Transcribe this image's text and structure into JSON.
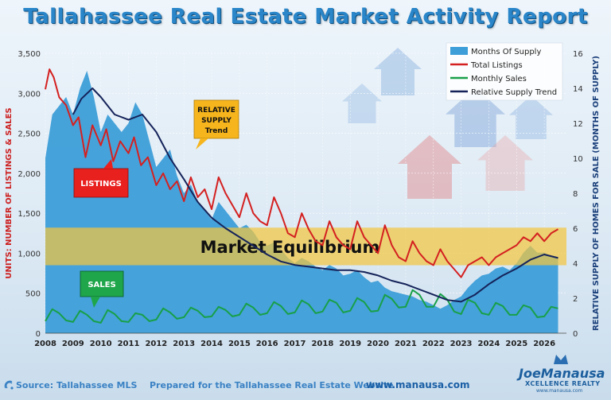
{
  "header": {
    "title": "Tallahassee Real Estate Market Activity Report"
  },
  "chart_data": {
    "type": "area",
    "title": "Tallahassee Real Estate Market Activity Report",
    "left_axis": {
      "label": "UNITS: NUMBER OF LISTINGS & SALES",
      "min": 0,
      "max": 3500,
      "ticks": [
        "0",
        "500",
        "1,000",
        "1,500",
        "2,000",
        "2,500",
        "3,000",
        "3,500"
      ],
      "tick_values": [
        0,
        500,
        1000,
        1500,
        2000,
        2500,
        3000,
        3500
      ]
    },
    "right_axis": {
      "label": "RELATIVE SUPPLY OF HOMES FOR SALE (MONTHS OF SUPPLY)",
      "min": 0,
      "max": 16,
      "ticks": [
        "0",
        "2",
        "4",
        "6",
        "8",
        "10",
        "12",
        "14",
        "16"
      ],
      "tick_values": [
        0,
        2,
        4,
        6,
        8,
        10,
        12,
        14,
        16
      ]
    },
    "x_axis": {
      "min": 2008,
      "max": 2026.8,
      "ticks": [
        "2008",
        "2009",
        "2010",
        "2011",
        "2012",
        "2013",
        "2014",
        "2015",
        "2016",
        "2017",
        "2018",
        "2019",
        "2020",
        "2021",
        "2022",
        "2023",
        "2024",
        "2025",
        "2026"
      ],
      "tick_values": [
        2008,
        2009,
        2010,
        2011,
        2012,
        2013,
        2014,
        2015,
        2016,
        2017,
        2018,
        2019,
        2020,
        2021,
        2022,
        2023,
        2024,
        2025,
        2026
      ]
    },
    "grid": true,
    "legend_position": "top-right",
    "equilibrium_band": {
      "label": "Market Equilibrium",
      "low": 850,
      "high": 1320
    },
    "annotations": {
      "listings": "LISTINGS",
      "sales": "SALES",
      "relative_supply": "RELATIVE SUPPLY Trend"
    },
    "series": [
      {
        "name": "Months Of Supply",
        "type": "area",
        "axis": "right",
        "color": "#3d9ed8",
        "x": [
          2008,
          2008.25,
          2008.5,
          2008.75,
          2009,
          2009.25,
          2009.5,
          2009.75,
          2010,
          2010.25,
          2010.5,
          2010.75,
          2011,
          2011.25,
          2011.5,
          2011.75,
          2012,
          2012.25,
          2012.5,
          2012.75,
          2013,
          2013.25,
          2013.5,
          2013.75,
          2014,
          2014.25,
          2014.5,
          2014.75,
          2015,
          2015.25,
          2015.5,
          2015.75,
          2016,
          2016.25,
          2016.5,
          2016.75,
          2017,
          2017.25,
          2017.5,
          2017.75,
          2018,
          2018.25,
          2018.5,
          2018.75,
          2019,
          2019.25,
          2019.5,
          2019.75,
          2020,
          2020.25,
          2020.5,
          2020.75,
          2021,
          2021.25,
          2021.5,
          2021.75,
          2022,
          2022.25,
          2022.5,
          2022.75,
          2023,
          2023.25,
          2023.5,
          2023.75,
          2024,
          2024.25,
          2024.5,
          2024.75,
          2025,
          2025.25,
          2025.5,
          2025.75,
          2026,
          2026.25,
          2026.5
        ],
        "y": [
          10,
          12.5,
          13,
          13.5,
          12.5,
          14,
          15,
          13.5,
          11.5,
          12.5,
          12,
          11.5,
          12,
          13.2,
          12.5,
          11,
          9.5,
          10,
          10.5,
          9,
          8,
          8.5,
          7.5,
          7,
          6.5,
          7.5,
          7,
          6.5,
          6,
          6.2,
          5.8,
          5.2,
          5,
          5.2,
          4.8,
          4.3,
          4,
          4.3,
          4.1,
          3.8,
          3.6,
          3.9,
          3.7,
          3.3,
          3.4,
          3.6,
          3.2,
          2.9,
          3,
          2.6,
          2.4,
          2.3,
          2.2,
          2.1,
          1.9,
          1.8,
          1.6,
          1.4,
          1.6,
          1.9,
          2.1,
          2.6,
          3,
          3.3,
          3.4,
          3.7,
          3.8,
          3.6,
          4,
          4.6,
          5,
          4.6,
          4.6,
          4.4,
          4.3
        ]
      },
      {
        "name": "Total Listings",
        "type": "line",
        "axis": "left",
        "color": "#d42020",
        "x": [
          2008,
          2008.15,
          2008.3,
          2008.5,
          2008.75,
          2009,
          2009.2,
          2009.45,
          2009.7,
          2010,
          2010.2,
          2010.45,
          2010.7,
          2011,
          2011.2,
          2011.45,
          2011.7,
          2012,
          2012.25,
          2012.5,
          2012.75,
          2013,
          2013.25,
          2013.5,
          2013.75,
          2014,
          2014.25,
          2014.5,
          2014.75,
          2015,
          2015.25,
          2015.5,
          2015.75,
          2016,
          2016.25,
          2016.5,
          2016.75,
          2017,
          2017.25,
          2017.5,
          2017.75,
          2018,
          2018.25,
          2018.5,
          2018.75,
          2019,
          2019.25,
          2019.5,
          2019.75,
          2020,
          2020.25,
          2020.5,
          2020.75,
          2021,
          2021.25,
          2021.5,
          2021.75,
          2022,
          2022.25,
          2022.5,
          2022.75,
          2023,
          2023.25,
          2023.5,
          2023.75,
          2024,
          2024.25,
          2024.5,
          2024.75,
          2025,
          2025.25,
          2025.5,
          2025.75,
          2026,
          2026.25,
          2026.5
        ],
        "y": [
          3050,
          3300,
          3200,
          2950,
          2850,
          2600,
          2700,
          2200,
          2600,
          2350,
          2550,
          2150,
          2400,
          2250,
          2450,
          2100,
          2200,
          1850,
          2000,
          1800,
          1900,
          1650,
          1950,
          1700,
          1800,
          1550,
          1950,
          1750,
          1600,
          1450,
          1750,
          1500,
          1400,
          1350,
          1700,
          1500,
          1250,
          1200,
          1500,
          1300,
          1150,
          1100,
          1400,
          1200,
          1100,
          1050,
          1400,
          1200,
          1100,
          1000,
          1350,
          1100,
          950,
          900,
          1150,
          1000,
          900,
          850,
          1050,
          900,
          800,
          700,
          850,
          900,
          950,
          850,
          950,
          1000,
          1050,
          1100,
          1200,
          1150,
          1250,
          1150,
          1250,
          1300
        ]
      },
      {
        "name": "Monthly Sales",
        "type": "line",
        "axis": "left",
        "color": "#18a048",
        "x": [
          2008,
          2008.25,
          2008.5,
          2008.75,
          2009,
          2009.25,
          2009.5,
          2009.75,
          2010,
          2010.25,
          2010.5,
          2010.75,
          2011,
          2011.25,
          2011.5,
          2011.75,
          2012,
          2012.25,
          2012.5,
          2012.75,
          2013,
          2013.25,
          2013.5,
          2013.75,
          2014,
          2014.25,
          2014.5,
          2014.75,
          2015,
          2015.25,
          2015.5,
          2015.75,
          2016,
          2016.25,
          2016.5,
          2016.75,
          2017,
          2017.25,
          2017.5,
          2017.75,
          2018,
          2018.25,
          2018.5,
          2018.75,
          2019,
          2019.25,
          2019.5,
          2019.75,
          2020,
          2020.25,
          2020.5,
          2020.75,
          2021,
          2021.25,
          2021.5,
          2021.75,
          2022,
          2022.25,
          2022.5,
          2022.75,
          2023,
          2023.25,
          2023.5,
          2023.75,
          2024,
          2024.25,
          2024.5,
          2024.75,
          2025,
          2025.25,
          2025.5,
          2025.75,
          2026,
          2026.25,
          2026.5
        ],
        "y": [
          150,
          300,
          250,
          160,
          140,
          280,
          230,
          150,
          130,
          290,
          240,
          150,
          140,
          250,
          230,
          150,
          170,
          310,
          260,
          180,
          200,
          320,
          280,
          200,
          210,
          330,
          290,
          210,
          230,
          370,
          320,
          230,
          250,
          390,
          340,
          240,
          260,
          410,
          360,
          250,
          270,
          420,
          380,
          260,
          280,
          440,
          390,
          270,
          280,
          480,
          430,
          320,
          330,
          540,
          480,
          330,
          330,
          490,
          420,
          270,
          240,
          420,
          380,
          250,
          230,
          380,
          340,
          230,
          230,
          350,
          320,
          200,
          210,
          330,
          310
        ]
      },
      {
        "name": "Relative Supply Trend",
        "type": "line",
        "axis": "right",
        "color": "#15235a",
        "x": [
          2009,
          2009.3,
          2009.7,
          2010,
          2010.5,
          2011,
          2011.5,
          2012,
          2012.5,
          2013,
          2013.5,
          2014,
          2014.5,
          2015,
          2015.5,
          2016,
          2016.5,
          2017,
          2017.5,
          2018,
          2018.5,
          2019,
          2019.5,
          2020,
          2020.5,
          2021,
          2021.5,
          2022,
          2022.5,
          2023,
          2023.5,
          2024,
          2024.5,
          2025,
          2025.5,
          2026,
          2026.5
        ],
        "y": [
          12.5,
          13.4,
          14,
          13.5,
          12.5,
          12.2,
          12.5,
          11.5,
          10,
          8.8,
          7.5,
          6.6,
          6,
          5.5,
          5,
          4.5,
          4.1,
          3.9,
          3.8,
          3.7,
          3.6,
          3.6,
          3.5,
          3.3,
          3,
          2.8,
          2.5,
          2.2,
          1.9,
          1.8,
          2.2,
          2.8,
          3.3,
          3.7,
          4.2,
          4.5,
          4.3
        ]
      }
    ]
  },
  "footer": {
    "source": "Source: Tallahassee MLS",
    "prepared": "Prepared for the Tallahassee Real Estate Website",
    "url": "www.manausa.com"
  },
  "logo": {
    "name": "JoeManausa",
    "tagline": "XCELLENCE REALTY",
    "site": "www.manausa.com"
  }
}
